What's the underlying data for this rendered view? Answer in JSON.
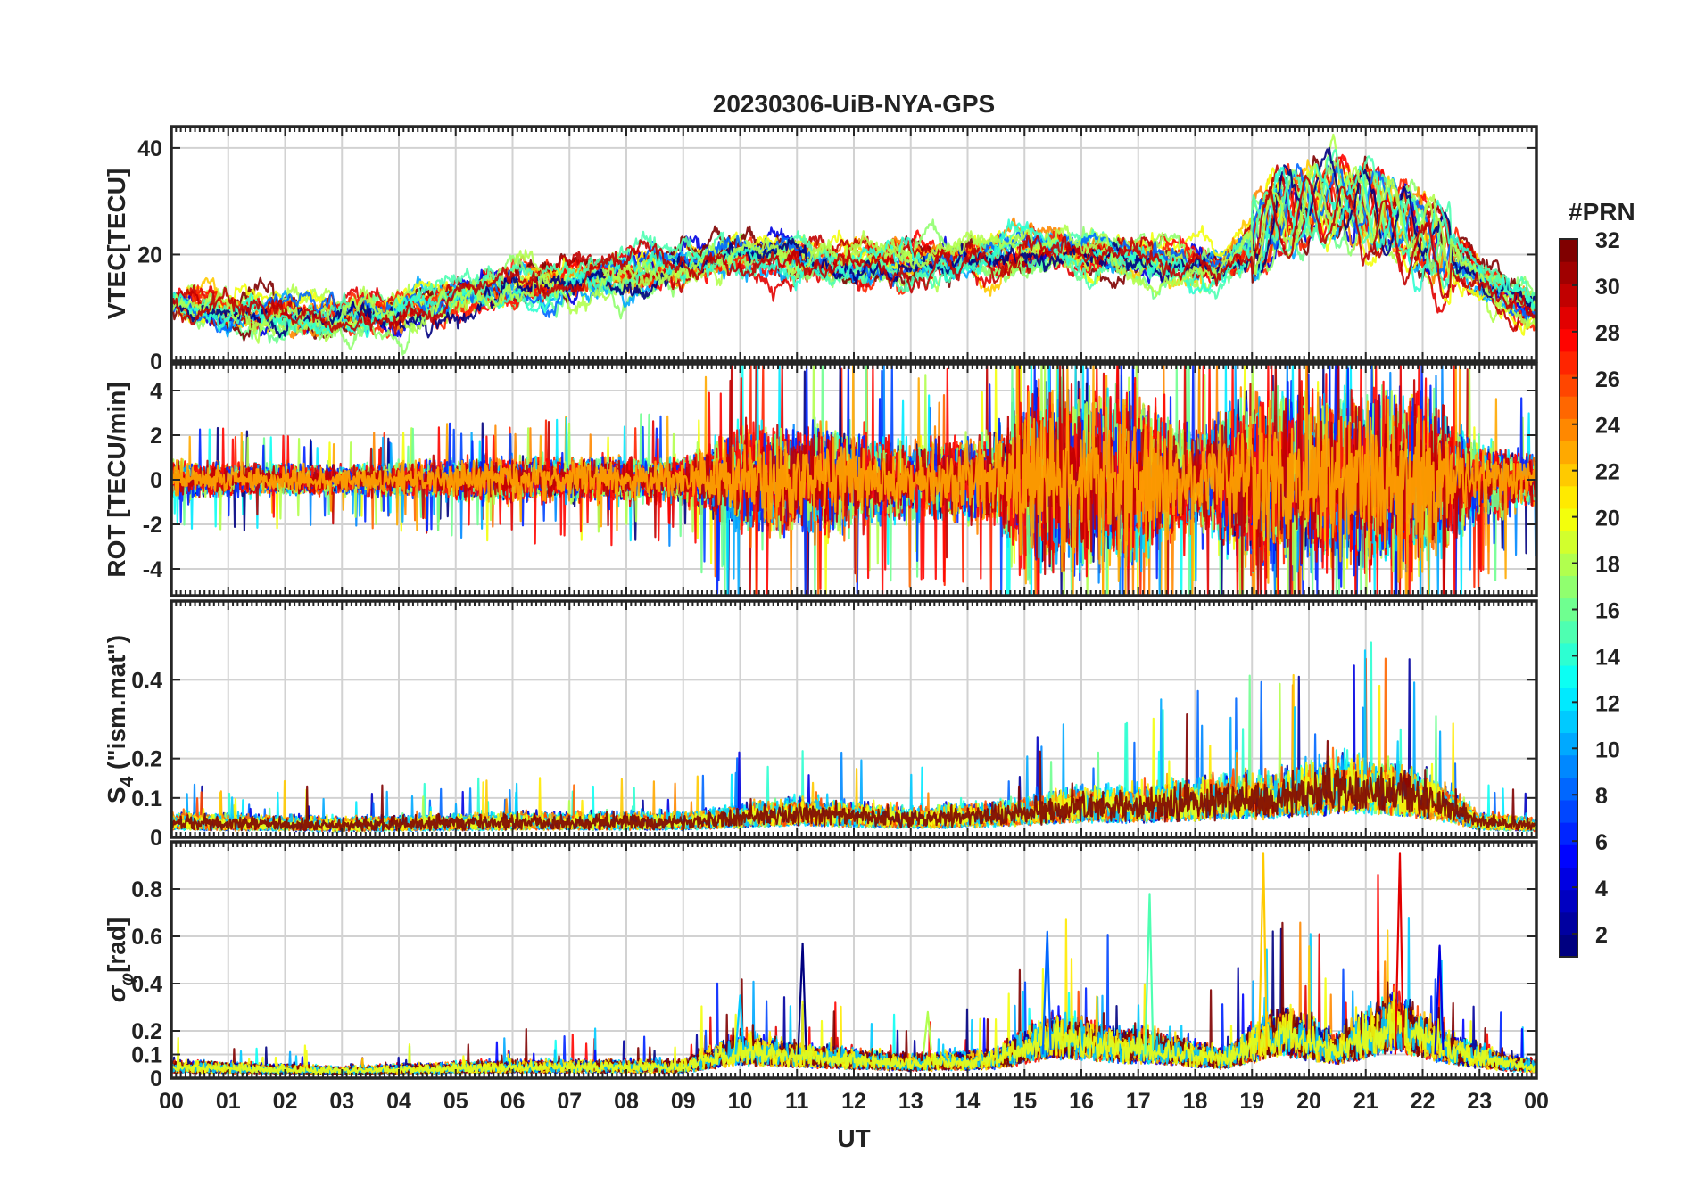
{
  "chart_data": {
    "type": "line",
    "title": "20230306-UiB-NYA-GPS",
    "xlabel": "UT",
    "x_ticks": [
      "00",
      "01",
      "02",
      "03",
      "04",
      "05",
      "06",
      "07",
      "08",
      "09",
      "10",
      "11",
      "12",
      "13",
      "14",
      "15",
      "16",
      "17",
      "18",
      "19",
      "20",
      "21",
      "22",
      "23",
      "00"
    ],
    "xlim": [
      0,
      24
    ],
    "grid": true,
    "colorbar": {
      "label": "#PRN",
      "ticks": [
        "2",
        "4",
        "6",
        "8",
        "10",
        "12",
        "14",
        "16",
        "18",
        "20",
        "22",
        "24",
        "26",
        "28",
        "30",
        "32"
      ],
      "range": [
        1,
        32
      ],
      "colormap": "jet"
    },
    "panels": [
      {
        "id": "vtec",
        "ylabel": "VTEC[TECU]",
        "ylim": [
          0,
          44
        ],
        "yticks": [
          0,
          20,
          40
        ],
        "ytick_labels": [
          "0",
          "20",
          "40"
        ],
        "envelope": {
          "x": [
            0,
            2,
            4,
            6,
            8,
            10,
            12,
            14,
            15.5,
            17,
            18.5,
            19.5,
            20.5,
            21.5,
            22.5,
            23.5,
            24
          ],
          "y": [
            11,
            8,
            10,
            14,
            16,
            20,
            18,
            19,
            21,
            19,
            18,
            28,
            30,
            27,
            20,
            12,
            10
          ]
        }
      },
      {
        "id": "rot",
        "ylabel": "ROT [TECU/min]",
        "ylim": [
          -5.2,
          5.2
        ],
        "yticks": [
          -4,
          -2,
          0,
          2,
          4
        ],
        "ytick_labels": [
          "-4",
          "-2",
          "0",
          "2",
          "4"
        ],
        "envelope": {
          "x": [
            0,
            3,
            6,
            9,
            10,
            11.5,
            13,
            14.5,
            15,
            17,
            18,
            19,
            20.5,
            22,
            23,
            24
          ],
          "y": [
            1,
            0.8,
            1.2,
            1.2,
            3,
            3,
            2,
            2.5,
            5,
            5,
            2.5,
            5,
            5,
            5,
            2,
            1.5
          ]
        }
      },
      {
        "id": "s4",
        "ylabel_main": "S",
        "ylabel_sub": "4",
        "ylabel_rest": " (\"ism.mat\")",
        "ylim": [
          0,
          0.6
        ],
        "yticks": [
          0,
          0.1,
          0.2,
          0.4
        ],
        "ytick_labels": [
          "0",
          "0.1",
          "0.2",
          "0.4"
        ],
        "envelope": {
          "x": [
            0,
            3,
            6,
            9,
            11,
            13,
            14.5,
            16,
            17,
            18.5,
            19.5,
            20.5,
            21.5,
            22.5,
            23,
            24
          ],
          "y": [
            0.05,
            0.04,
            0.05,
            0.05,
            0.08,
            0.06,
            0.07,
            0.1,
            0.1,
            0.12,
            0.13,
            0.16,
            0.15,
            0.1,
            0.05,
            0.04
          ]
        }
      },
      {
        "id": "sigma",
        "ylabel_main": "σ",
        "ylabel_sub": "φ",
        "ylabel_rest": "[rad]",
        "ylim": [
          0,
          1
        ],
        "yticks": [
          0,
          0.1,
          0.2,
          0.4,
          0.6,
          0.8
        ],
        "ytick_labels": [
          "0",
          "0.1",
          "0.2",
          "0.4",
          "0.6",
          "0.8"
        ],
        "envelope": {
          "x": [
            0,
            3,
            6,
            9,
            10,
            11,
            12,
            13,
            14.5,
            15.5,
            16.5,
            17.5,
            18.5,
            19.5,
            20.5,
            21.5,
            22.5,
            23.5,
            24
          ],
          "y": [
            0.06,
            0.04,
            0.06,
            0.06,
            0.15,
            0.12,
            0.1,
            0.08,
            0.1,
            0.22,
            0.18,
            0.15,
            0.1,
            0.25,
            0.15,
            0.3,
            0.15,
            0.08,
            0.06
          ]
        },
        "spikes": [
          {
            "x": 11.1,
            "y": 0.57
          },
          {
            "x": 15.4,
            "y": 0.62
          },
          {
            "x": 17.2,
            "y": 0.78
          },
          {
            "x": 19.2,
            "y": 0.95
          },
          {
            "x": 21.6,
            "y": 0.95
          },
          {
            "x": 22.3,
            "y": 0.56
          },
          {
            "x": 10.0,
            "y": 0.35
          },
          {
            "x": 13.3,
            "y": 0.28
          }
        ]
      }
    ],
    "series_count": 24
  }
}
